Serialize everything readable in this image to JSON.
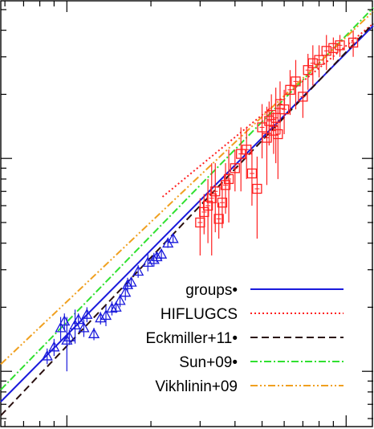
{
  "chart_data": {
    "type": "scatter",
    "title": "",
    "xlabel": "",
    "ylabel": "",
    "xscale": "log",
    "yscale": "log",
    "xlim": [
      0.58,
      12.5
    ],
    "ylim": [
      0.055,
      5.5
    ],
    "legend_position": "bottom-right",
    "series": [
      {
        "name": "groups•",
        "kind": "fit-line",
        "color": "#1a1adc",
        "dash": "solid",
        "x": [
          0.58,
          12.5
        ],
        "y": [
          0.072,
          4.2
        ]
      },
      {
        "name": "HIFLUGCS",
        "kind": "fit-line",
        "color": "#ff2020",
        "dash": "dotted",
        "x": [
          2.2,
          12.5
        ],
        "y": [
          0.66,
          4.3
        ]
      },
      {
        "name": "Eckmiller+11•",
        "kind": "fit-line",
        "color": "#2a1010",
        "dash": "dashed",
        "x": [
          0.58,
          12.5
        ],
        "y": [
          0.062,
          4.3
        ]
      },
      {
        "name": "Sun+09•",
        "kind": "fit-line",
        "color": "#30e030",
        "dash": "dashdot",
        "x": [
          0.58,
          12.5
        ],
        "y": [
          0.082,
          5.1
        ]
      },
      {
        "name": "Vikhlinin+09",
        "kind": "fit-line",
        "color": "#f0a020",
        "dash": "dashdotdot",
        "x": [
          0.58,
          12.5
        ],
        "y": [
          0.108,
          4.9
        ]
      },
      {
        "name": "groups-points",
        "kind": "points",
        "marker": "triangle",
        "color": "#1a1adc",
        "x": [
          0.85,
          0.9,
          0.95,
          0.98,
          1.0,
          1.02,
          1.07,
          1.1,
          1.15,
          1.18,
          1.25,
          1.32,
          1.38,
          1.45,
          1.5,
          1.55,
          1.62,
          1.65,
          1.7,
          1.8,
          1.95,
          2.05,
          2.1,
          2.18,
          2.3,
          2.4
        ],
        "y": [
          0.118,
          0.13,
          0.16,
          0.172,
          0.14,
          0.145,
          0.165,
          0.175,
          0.16,
          0.185,
          0.15,
          0.178,
          0.183,
          0.198,
          0.2,
          0.215,
          0.235,
          0.255,
          0.262,
          0.295,
          0.325,
          0.335,
          0.345,
          0.355,
          0.4,
          0.42
        ],
        "yerr": [
          0.01,
          0.012,
          0.02,
          0.015,
          0.04,
          0.012,
          0.03,
          0.012,
          0.015,
          0.015,
          0.01,
          0.012,
          0.02,
          0.015,
          0.012,
          0.015,
          0.02,
          0.02,
          0.015,
          0.02,
          0.03,
          0.025,
          0.02,
          0.02,
          0.02,
          0.02
        ]
      },
      {
        "name": "HIFLUGCS-points",
        "kind": "points",
        "marker": "square",
        "color": "#ff2020",
        "x": [
          3.0,
          3.1,
          3.2,
          3.3,
          3.4,
          3.5,
          3.6,
          3.7,
          3.8,
          4.0,
          4.2,
          4.4,
          4.6,
          4.8,
          5.0,
          5.2,
          5.3,
          5.4,
          5.5,
          5.6,
          5.7,
          5.8,
          6.0,
          6.3,
          6.6,
          7.0,
          7.3,
          7.6,
          8.0,
          8.5,
          9.0,
          9.5,
          10.6
        ],
        "y": [
          0.5,
          0.56,
          0.6,
          0.65,
          0.7,
          0.52,
          0.62,
          0.75,
          0.8,
          0.9,
          1.05,
          1.1,
          0.85,
          0.72,
          1.4,
          1.25,
          1.5,
          1.6,
          1.35,
          1.55,
          1.3,
          1.8,
          1.7,
          2.1,
          2.3,
          1.95,
          2.6,
          2.8,
          2.9,
          3.2,
          3.3,
          3.4,
          3.5
        ],
        "yerr": [
          0.15,
          0.12,
          0.2,
          0.3,
          0.25,
          0.1,
          0.15,
          0.2,
          0.3,
          0.2,
          0.35,
          0.3,
          0.25,
          0.3,
          0.4,
          0.5,
          0.35,
          0.4,
          0.3,
          0.6,
          0.5,
          0.5,
          0.4,
          0.5,
          0.6,
          0.4,
          0.5,
          0.6,
          0.5,
          0.6,
          0.4,
          0.4,
          0.5
        ]
      }
    ]
  }
}
